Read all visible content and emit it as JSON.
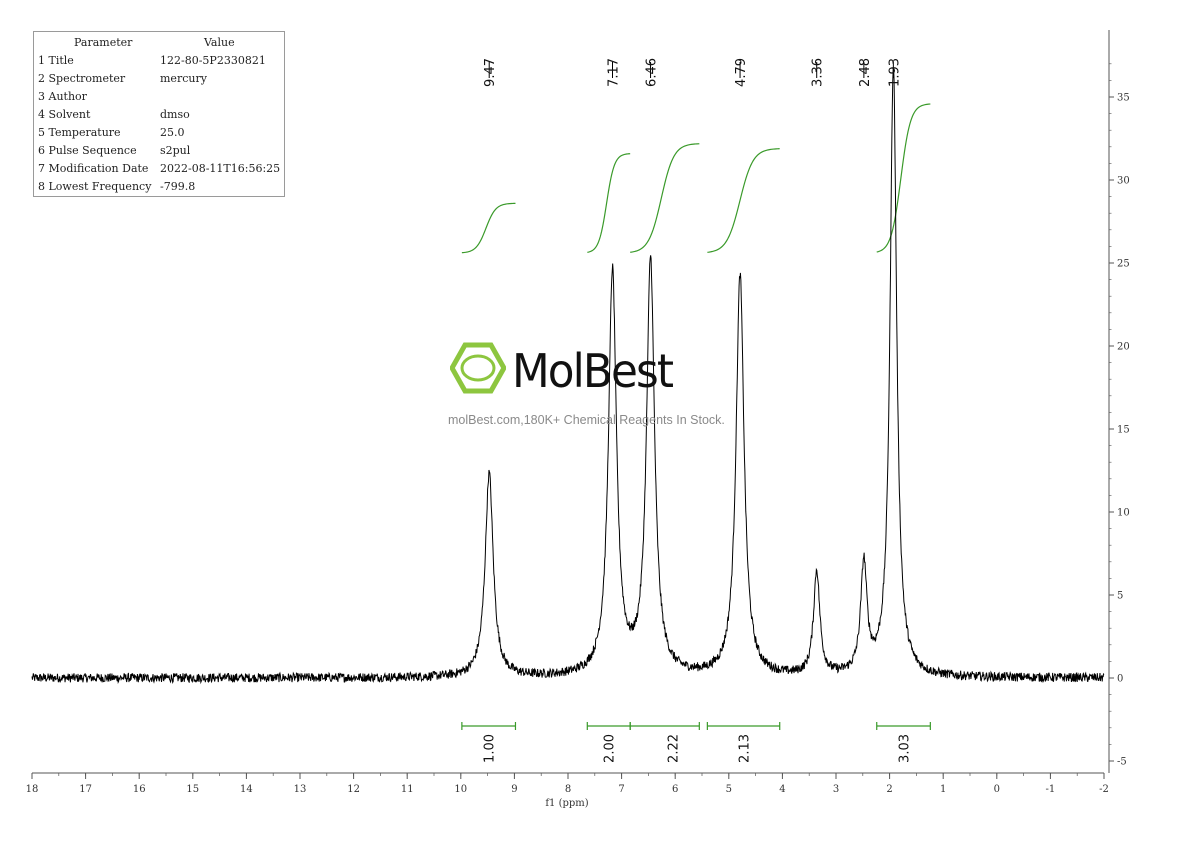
{
  "parameters": {
    "header": [
      "Parameter",
      "Value"
    ],
    "rows": [
      [
        "1 Title",
        "122-80-5P2330821"
      ],
      [
        "2 Spectrometer",
        "mercury"
      ],
      [
        "3 Author",
        ""
      ],
      [
        "4 Solvent",
        "dmso"
      ],
      [
        "5 Temperature",
        "25.0"
      ],
      [
        "6 Pulse Sequence",
        "s2pul"
      ],
      [
        "7 Modification Date",
        "2022-08-11T16:56:25"
      ],
      [
        "8 Lowest Frequency",
        "-799.8"
      ]
    ]
  },
  "watermark": {
    "brand": "MolBest",
    "tagline": "molBest.com,180K+ Chemical Reagents In Stock.",
    "accent_color": "#8dc63f"
  },
  "colors": {
    "spectrum": "#000000",
    "integral": "#3a9a2a",
    "axis": "#555555"
  },
  "chart_data": {
    "type": "line",
    "xlabel": "f1 (ppm)",
    "xlim": [
      18,
      -2
    ],
    "ylim": [
      -5,
      37
    ],
    "x_ticks": [
      "18",
      "17",
      "16",
      "15",
      "14",
      "13",
      "12",
      "11",
      "10",
      "9",
      "8",
      "7",
      "6",
      "5",
      "4",
      "3",
      "2",
      "1",
      "0",
      "-1",
      "-2"
    ],
    "y_ticks": [
      "35",
      "30",
      "25",
      "20",
      "15",
      "10",
      "5",
      "0",
      "-5"
    ],
    "peaks": [
      {
        "ppm": 9.47,
        "label": "9.47",
        "height": 12.3,
        "width": 0.09
      },
      {
        "ppm": 7.17,
        "label": "7.17",
        "height": 24.3,
        "width": 0.09
      },
      {
        "ppm": 6.46,
        "label": "6.46",
        "height": 25.0,
        "width": 0.09
      },
      {
        "ppm": 4.79,
        "label": "4.79",
        "height": 24.2,
        "width": 0.09
      },
      {
        "ppm": 3.36,
        "label": "3.36",
        "height": 6.3,
        "width": 0.07
      },
      {
        "ppm": 2.48,
        "label": "2.48",
        "height": 6.6,
        "width": 0.07
      },
      {
        "ppm": 1.93,
        "label": "1.93",
        "height": 36.8,
        "width": 0.075
      }
    ],
    "integrals": [
      {
        "from": 9.98,
        "to": 8.98,
        "value": "1.00",
        "y0": 25.6,
        "y1": 28.6
      },
      {
        "from": 7.64,
        "to": 6.84,
        "value": "2.00",
        "y0": 25.6,
        "y1": 31.6
      },
      {
        "from": 6.84,
        "to": 5.55,
        "value": "2.22",
        "y0": 25.6,
        "y1": 32.2
      },
      {
        "from": 5.4,
        "to": 4.05,
        "value": "2.13",
        "y0": 25.6,
        "y1": 31.9
      },
      {
        "from": 2.24,
        "to": 1.24,
        "value": "3.03",
        "y0": 25.6,
        "y1": 34.6
      }
    ]
  }
}
